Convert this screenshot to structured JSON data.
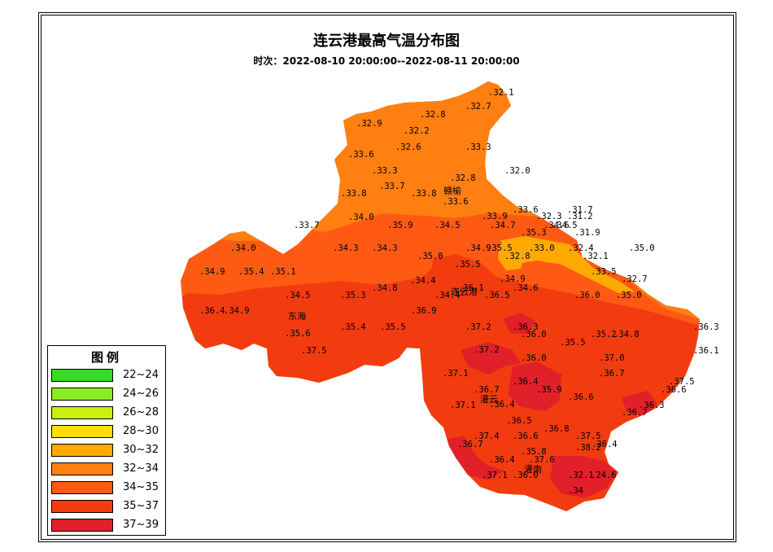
{
  "title": "连云港最高气温分布图",
  "subtitle": "时次：2022-08-10 20:00:00--2022-08-11 20:00:00",
  "legend": {
    "title": "图例",
    "items": [
      {
        "label": "22~24",
        "color": "#33dd22"
      },
      {
        "label": "24~26",
        "color": "#88ee22"
      },
      {
        "label": "26~28",
        "color": "#ccee11"
      },
      {
        "label": "28~30",
        "color": "#ffdd00"
      },
      {
        "label": "30~32",
        "color": "#ffaa00"
      },
      {
        "label": "32~34",
        "color": "#ff7f11"
      },
      {
        "label": "34~35",
        "color": "#ff5a14"
      },
      {
        "label": "35~37",
        "color": "#f23c0f"
      },
      {
        "label": "37~39",
        "color": "#e1202a"
      }
    ]
  },
  "cities": [
    "赣榆",
    "连云港",
    "东海",
    "灌云",
    "灌南"
  ],
  "stations": [
    "32.1",
    "32.7",
    "32.8",
    "32.9",
    "32.2",
    "32.6",
    "33.3",
    "33.6",
    "33.3",
    "32.8",
    "32.0",
    "33.7",
    "33.8",
    "33.8",
    "33.6",
    "33.6",
    "33.9",
    "32.3",
    "31.7",
    "31.2",
    "33.7",
    "34.0",
    "35.9",
    "34.5",
    "34.7",
    "34.6",
    "34.5",
    "35.3",
    "31.9",
    "34.0",
    "34.3",
    "34.3",
    "34.9",
    "35.5",
    "32.8",
    "33.0",
    "32.4",
    "35.0",
    "32.1",
    "34.9",
    "35.4",
    "35.1",
    "35.0",
    "35.5",
    "34.4",
    "33.5",
    "32.7",
    "34.5",
    "35.3",
    "34.8",
    "34.4",
    "34.6",
    "36.1",
    "36.5",
    "34.9",
    "36.0",
    "35.0",
    "36.4",
    "34.9",
    "36.9",
    "35.6",
    "35.4",
    "35.5",
    "37.2",
    "36.3",
    "36.0",
    "35.5",
    "35.2",
    "34.8",
    "36.3",
    "37.5",
    "37.2",
    "36.0",
    "37.0",
    "36.1",
    "37.1",
    "36.4",
    "36.7",
    "36.7",
    "37.5",
    "35.9",
    "36.6",
    "36.6",
    "37.1",
    "36.4",
    "36.3",
    "36.5",
    "36.7",
    "36.6",
    "36.8",
    "37.5",
    "36.7",
    "37.4",
    "38.2",
    "35.8",
    "36.4",
    "36.4",
    "37.6",
    "37.1",
    "36.0",
    "32.1",
    "24.6",
    "34"
  ]
}
